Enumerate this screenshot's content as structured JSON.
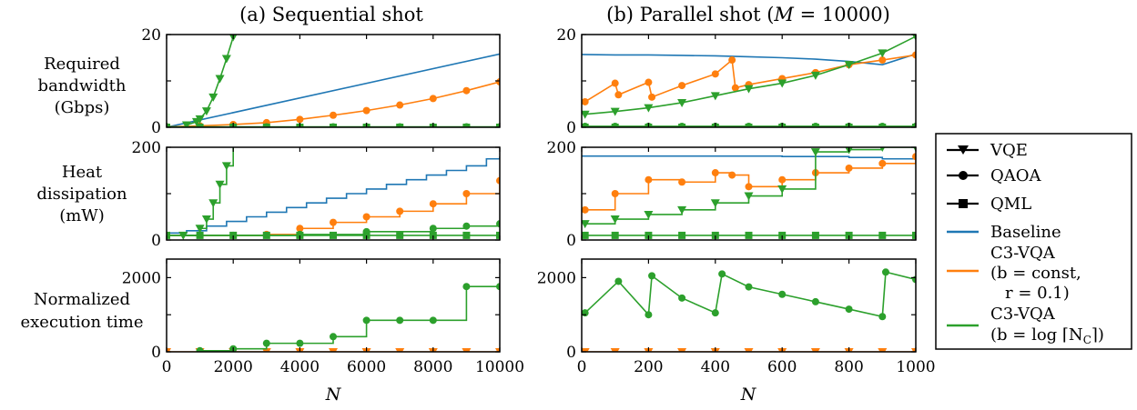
{
  "titles": {
    "left": "(a) Sequential shot",
    "right_prefix": "(b) Parallel shot (",
    "right_math": "M",
    "right_eq": " = 10000)"
  },
  "row_labels": {
    "bw": [
      "Required",
      "bandwidth",
      "(Gbps)"
    ],
    "heat": [
      "Heat",
      "dissipation",
      "(mW)"
    ],
    "time": [
      "Normalized",
      "execution time"
    ]
  },
  "xlabel": "N",
  "legend": {
    "vqe": "VQE",
    "qaoa": "QAOA",
    "qml": "QML",
    "baseline": "Baseline",
    "c3_const": [
      "C3-VQA",
      "(b = const,",
      "r = 0.1)"
    ],
    "c3_log": [
      "C3-VQA",
      "(b = log ⌈N",
      "C",
      "⌉)"
    ]
  },
  "colors": {
    "baseline": "#1f77b4",
    "c3_const": "#ff7f0e",
    "c3_log": "#2ca02c",
    "axis": "#000000"
  },
  "chart_data": [
    {
      "id": "seq_bw",
      "type": "line",
      "xlim": [
        0,
        10000
      ],
      "ylim": [
        0,
        20
      ],
      "yticks": [
        0,
        10,
        20
      ],
      "ytick_labels": [
        "0",
        "",
        "20"
      ],
      "xticks": [
        0,
        2000,
        4000,
        6000,
        8000,
        10000
      ],
      "xtick_labels": [],
      "series": [
        {
          "color_key": "baseline",
          "marker": "none",
          "x": [
            0,
            10000
          ],
          "y": [
            0,
            15.8
          ]
        },
        {
          "color_key": "c3_const",
          "marker": "circle",
          "x": [
            0,
            1000,
            2000,
            3000,
            4000,
            5000,
            6000,
            7000,
            8000,
            9000,
            10000
          ],
          "y": [
            0.1,
            0.3,
            0.6,
            1.0,
            1.7,
            2.6,
            3.6,
            4.8,
            6.2,
            7.9,
            9.8
          ]
        },
        {
          "color_key": "c3_log",
          "marker": "triangle",
          "x": [
            600,
            900,
            1000,
            1200,
            1400,
            1600,
            1800,
            2000,
            2100
          ],
          "y": [
            0.5,
            1.2,
            1.8,
            3.5,
            6.5,
            10.5,
            14.8,
            19.5,
            21
          ]
        },
        {
          "color_key": "c3_log",
          "marker": "circle",
          "x": [
            0,
            1000,
            2000,
            3000,
            4000,
            5000,
            6000,
            7000,
            8000,
            9000,
            10000
          ],
          "y": [
            0.1,
            0.1,
            0.1,
            0.1,
            0.1,
            0.1,
            0.1,
            0.1,
            0.1,
            0.1,
            0.1
          ]
        },
        {
          "color_key": "c3_log",
          "marker": "square",
          "x": [
            0,
            1000,
            2000,
            3000,
            4000,
            5000,
            6000,
            7000,
            8000,
            9000,
            10000
          ],
          "y": [
            0,
            0,
            0,
            0,
            0,
            0,
            0,
            0,
            0,
            0,
            0
          ]
        }
      ]
    },
    {
      "id": "par_bw",
      "type": "line",
      "xlim": [
        0,
        1000
      ],
      "ylim": [
        0,
        20
      ],
      "yticks": [
        0,
        10,
        20
      ],
      "ytick_labels": [
        "0",
        "",
        "20"
      ],
      "xticks": [
        0,
        200,
        400,
        600,
        800,
        1000
      ],
      "xtick_labels": [],
      "series": [
        {
          "color_key": "baseline",
          "marker": "none",
          "x": [
            0,
            100,
            200,
            300,
            400,
            500,
            600,
            700,
            800,
            900,
            1000
          ],
          "y": [
            15.7,
            15.6,
            15.6,
            15.5,
            15.4,
            15.2,
            15.0,
            14.7,
            14.2,
            13.5,
            15.8
          ]
        },
        {
          "color_key": "c3_const",
          "marker": "circle",
          "x": [
            10,
            100,
            110,
            200,
            210,
            300,
            400,
            450,
            460,
            500,
            600,
            700,
            800,
            900,
            1000
          ],
          "y": [
            5.5,
            9.5,
            7.0,
            9.7,
            6.5,
            9.0,
            11.5,
            14.5,
            8.5,
            9.2,
            10.5,
            11.8,
            13.5,
            14.5,
            15.6
          ]
        },
        {
          "color_key": "c3_log",
          "marker": "triangle",
          "x": [
            10,
            100,
            200,
            300,
            400,
            500,
            600,
            700,
            800,
            900,
            1000
          ],
          "y": [
            2.8,
            3.4,
            4.2,
            5.3,
            6.8,
            8.3,
            9.5,
            11.2,
            13.5,
            16.0,
            19.6
          ]
        },
        {
          "color_key": "c3_log",
          "marker": "circle",
          "x": [
            10,
            100,
            200,
            300,
            400,
            500,
            600,
            700,
            800,
            900,
            1000
          ],
          "y": [
            0.2,
            0.2,
            0.2,
            0.2,
            0.2,
            0.2,
            0.2,
            0.2,
            0.2,
            0.2,
            0.2
          ]
        },
        {
          "color_key": "c3_log",
          "marker": "square",
          "x": [
            10,
            100,
            200,
            300,
            400,
            500,
            600,
            700,
            800,
            900,
            1000
          ],
          "y": [
            0,
            0,
            0,
            0,
            0,
            0,
            0,
            0,
            0,
            0,
            0
          ]
        }
      ]
    },
    {
      "id": "seq_heat",
      "type": "line",
      "step": true,
      "xlim": [
        0,
        10000
      ],
      "ylim": [
        0,
        200
      ],
      "yticks": [
        0,
        100,
        200
      ],
      "ytick_labels": [
        "0",
        "",
        "200"
      ],
      "xticks": [
        0,
        2000,
        4000,
        6000,
        8000,
        10000
      ],
      "xtick_labels": [],
      "series": [
        {
          "color_key": "baseline",
          "marker": "none",
          "x": [
            0,
            600,
            1200,
            1800,
            2400,
            3000,
            3600,
            4200,
            4800,
            5400,
            6000,
            6600,
            7200,
            7800,
            8400,
            9000,
            9600,
            10000
          ],
          "y": [
            15,
            20,
            30,
            40,
            50,
            60,
            70,
            80,
            90,
            100,
            110,
            120,
            130,
            140,
            150,
            160,
            175,
            180
          ]
        },
        {
          "color_key": "c3_const",
          "marker": "circle",
          "x": [
            0,
            3000,
            4000,
            5000,
            6000,
            7000,
            8000,
            9000,
            10000
          ],
          "y": [
            10,
            12,
            25,
            38,
            50,
            62,
            78,
            100,
            128
          ]
        },
        {
          "color_key": "c3_log",
          "marker": "triangle",
          "x": [
            500,
            1000,
            1200,
            1400,
            1600,
            1800,
            2000
          ],
          "y": [
            10,
            25,
            45,
            80,
            120,
            160,
            210
          ]
        },
        {
          "color_key": "c3_log",
          "marker": "circle",
          "x": [
            0,
            2000,
            4000,
            6000,
            8000,
            9000,
            10000
          ],
          "y": [
            10,
            10,
            12,
            18,
            25,
            30,
            35
          ]
        },
        {
          "color_key": "c3_log",
          "marker": "square",
          "x": [
            0,
            1000,
            2000,
            3000,
            4000,
            5000,
            6000,
            7000,
            8000,
            9000,
            10000
          ],
          "y": [
            10,
            10,
            10,
            10,
            10,
            10,
            10,
            10,
            10,
            10,
            10
          ]
        }
      ]
    },
    {
      "id": "par_heat",
      "type": "line",
      "step": true,
      "xlim": [
        0,
        1000
      ],
      "ylim": [
        0,
        200
      ],
      "yticks": [
        0,
        100,
        200
      ],
      "ytick_labels": [
        "0",
        "",
        "200"
      ],
      "xticks": [
        0,
        200,
        400,
        600,
        800,
        1000
      ],
      "xtick_labels": [],
      "series": [
        {
          "color_key": "baseline",
          "marker": "none",
          "x": [
            0,
            400,
            500,
            600,
            700,
            800,
            900,
            1000
          ],
          "y": [
            181,
            181,
            181,
            180,
            180,
            178,
            175,
            180
          ]
        },
        {
          "color_key": "c3_const",
          "marker": "circle",
          "x": [
            10,
            100,
            200,
            300,
            400,
            450,
            500,
            600,
            700,
            800,
            900,
            1000
          ],
          "y": [
            65,
            100,
            130,
            125,
            145,
            140,
            115,
            130,
            145,
            155,
            165,
            180
          ]
        },
        {
          "color_key": "c3_log",
          "marker": "triangle",
          "x": [
            10,
            100,
            200,
            300,
            400,
            500,
            600,
            700,
            800,
            900,
            1000
          ],
          "y": [
            35,
            45,
            55,
            65,
            80,
            95,
            110,
            190,
            195,
            200,
            200
          ]
        },
        {
          "color_key": "c3_log",
          "marker": "square",
          "x": [
            10,
            100,
            200,
            300,
            400,
            500,
            600,
            700,
            800,
            900,
            1000
          ],
          "y": [
            10,
            10,
            10,
            10,
            10,
            10,
            10,
            10,
            10,
            10,
            10
          ]
        }
      ]
    },
    {
      "id": "seq_time",
      "type": "line",
      "step": true,
      "xlim": [
        0,
        10000
      ],
      "ylim": [
        0,
        2500
      ],
      "yticks": [
        0,
        1000,
        2000
      ],
      "ytick_labels": [
        "0",
        "",
        "2000"
      ],
      "xticks": [
        0,
        2000,
        4000,
        6000,
        8000,
        10000
      ],
      "xtick_labels": [
        "0",
        "2000",
        "4000",
        "6000",
        "8000",
        "10000"
      ],
      "series": [
        {
          "color_key": "c3_const",
          "marker": "triangle",
          "x": [
            0,
            1000,
            2000,
            3000,
            4000,
            5000,
            6000,
            7000,
            8000,
            9000,
            10000
          ],
          "y": [
            0,
            0,
            0,
            0,
            0,
            0,
            0,
            0,
            0,
            0,
            0
          ]
        },
        {
          "color_key": "c3_log",
          "marker": "circle",
          "x": [
            1000,
            2000,
            3000,
            4000,
            5000,
            6000,
            7000,
            8000,
            9000,
            10000
          ],
          "y": [
            30,
            80,
            230,
            230,
            410,
            850,
            850,
            850,
            1760,
            1760
          ]
        }
      ]
    },
    {
      "id": "par_time",
      "type": "line",
      "xlim": [
        0,
        1000
      ],
      "ylim": [
        0,
        2500
      ],
      "yticks": [
        0,
        1000,
        2000
      ],
      "ytick_labels": [
        "0",
        "",
        "2000"
      ],
      "xticks": [
        0,
        200,
        400,
        600,
        800,
        1000
      ],
      "xtick_labels": [
        "0",
        "200",
        "400",
        "600",
        "800",
        "1000"
      ],
      "series": [
        {
          "color_key": "c3_const",
          "marker": "triangle",
          "x": [
            10,
            100,
            200,
            300,
            400,
            500,
            600,
            700,
            800,
            900,
            1000
          ],
          "y": [
            0,
            0,
            0,
            0,
            0,
            0,
            0,
            0,
            0,
            0,
            0
          ]
        },
        {
          "color_key": "c3_log",
          "marker": "circle",
          "x": [
            10,
            110,
            200,
            210,
            300,
            400,
            420,
            500,
            600,
            700,
            800,
            900,
            910,
            1000
          ],
          "y": [
            1050,
            1900,
            1000,
            2050,
            1450,
            1050,
            2100,
            1750,
            1550,
            1350,
            1150,
            950,
            2150,
            1950
          ]
        }
      ]
    }
  ]
}
